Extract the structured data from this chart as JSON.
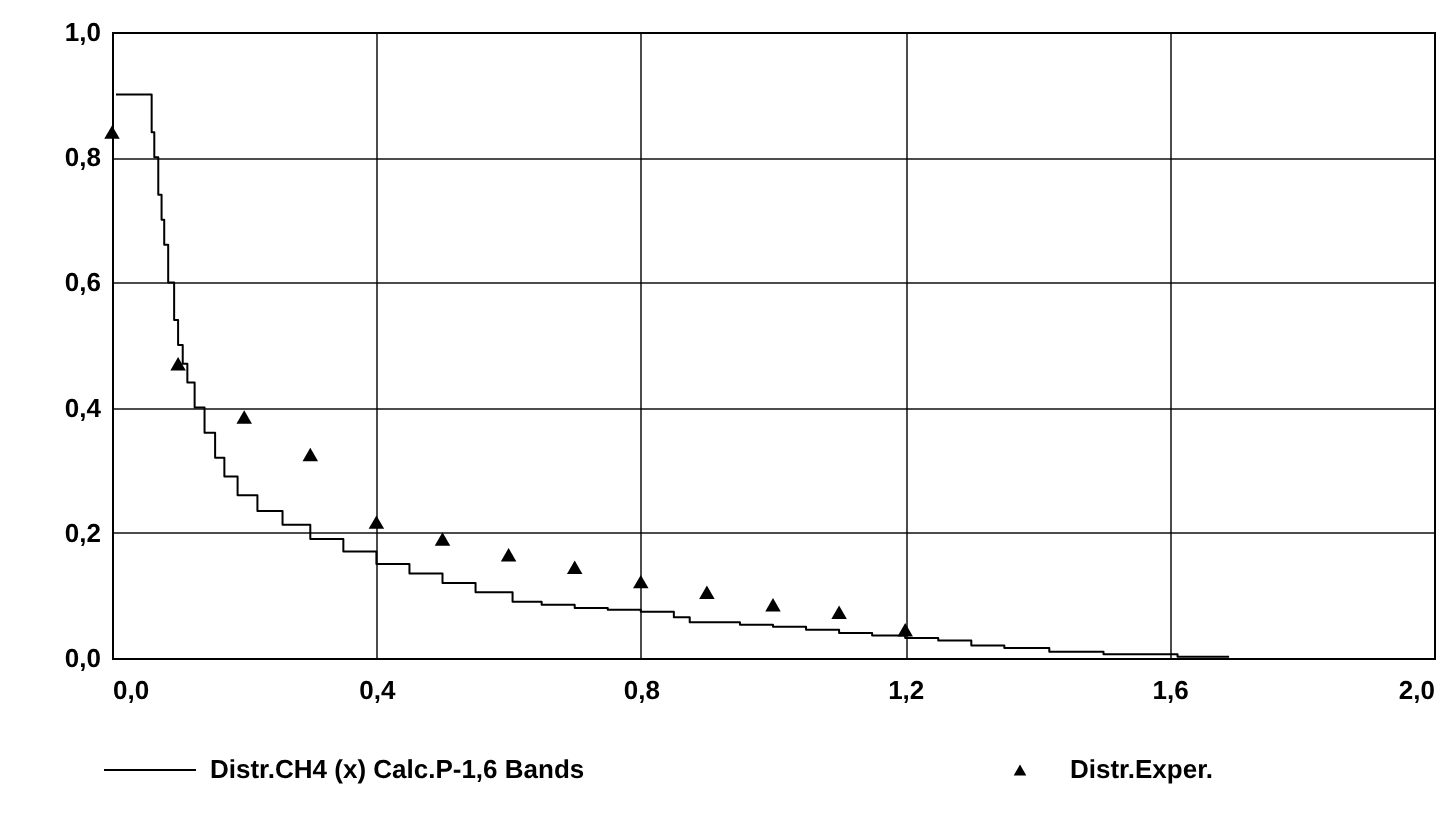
{
  "chart_data": {
    "type": "step",
    "xlim": [
      0,
      2.0
    ],
    "xticks": [
      {
        "value": 0,
        "label": "0,0"
      },
      {
        "value": 0.4,
        "label": "0,4"
      },
      {
        "value": 0.8,
        "label": "0,8"
      },
      {
        "value": 1.2,
        "label": "1,2"
      },
      {
        "value": 1.6,
        "label": "1,6"
      },
      {
        "value": 2.0,
        "label": "2,0"
      }
    ],
    "ylim": [
      0,
      1.0
    ],
    "yticks": [
      {
        "value": 0,
        "label": "0,0"
      },
      {
        "value": 0.2,
        "label": "0,2"
      },
      {
        "value": 0.4,
        "label": "0,4"
      },
      {
        "value": 0.6,
        "label": "0,6"
      },
      {
        "value": 0.8,
        "label": "0,8"
      },
      {
        "value": 1.0,
        "label": "1,0"
      }
    ],
    "grid": true,
    "legend": "bottom",
    "series": [
      {
        "name": "Distr.CH4 (x) Calc.P-1,6 Bands",
        "color": "#000000",
        "marker": "none",
        "line_style": "solid",
        "x": [
          0.006,
          0.055,
          0.06,
          0.064,
          0.07,
          0.075,
          0.079,
          0.085,
          0.094,
          0.1,
          0.107,
          0.114,
          0.125,
          0.14,
          0.156,
          0.17,
          0.19,
          0.22,
          0.258,
          0.3,
          0.35,
          0.4,
          0.45,
          0.5,
          0.55,
          0.606,
          0.65,
          0.7,
          0.75,
          0.8,
          0.85,
          0.874,
          0.95,
          1.0,
          1.05,
          1.1,
          1.15,
          1.2,
          1.25,
          1.3,
          1.35,
          1.418,
          1.5,
          1.612,
          1.69
        ],
        "values": [
          0.9,
          0.9,
          0.84,
          0.8,
          0.74,
          0.7,
          0.66,
          0.6,
          0.54,
          0.5,
          0.47,
          0.44,
          0.4,
          0.36,
          0.32,
          0.29,
          0.26,
          0.235,
          0.213,
          0.19,
          0.17,
          0.15,
          0.135,
          0.12,
          0.105,
          0.09,
          0.085,
          0.08,
          0.077,
          0.074,
          0.065,
          0.057,
          0.053,
          0.05,
          0.045,
          0.04,
          0.036,
          0.032,
          0.028,
          0.02,
          0.016,
          0.01,
          0.006,
          0.002,
          0.002
        ]
      },
      {
        "name": "Distr.Exper.",
        "type": "scatter",
        "color": "#000000",
        "marker": "triangle",
        "x": [
          0.0,
          0.1,
          0.2,
          0.3,
          0.4,
          0.5,
          0.6,
          0.7,
          0.8,
          0.9,
          1.0,
          1.1,
          1.2
        ],
        "values": [
          0.84,
          0.47,
          0.385,
          0.325,
          0.217,
          0.19,
          0.165,
          0.145,
          0.122,
          0.105,
          0.085,
          0.073,
          0.045
        ]
      }
    ]
  }
}
